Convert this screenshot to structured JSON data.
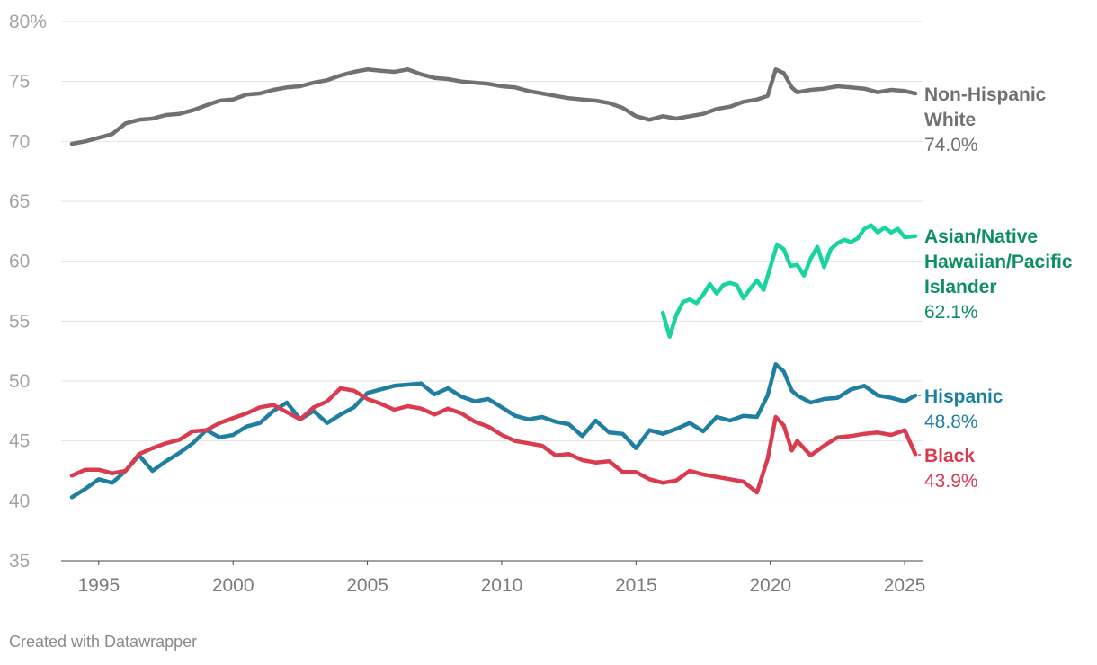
{
  "chart_data": {
    "type": "line",
    "xlim": [
      1993.6,
      2025.7
    ],
    "ylim": [
      35,
      80
    ],
    "y_ticks": [
      {
        "value": 80,
        "label": "80%"
      },
      {
        "value": 75,
        "label": "75"
      },
      {
        "value": 70,
        "label": "70"
      },
      {
        "value": 65,
        "label": "65"
      },
      {
        "value": 60,
        "label": "60"
      },
      {
        "value": 55,
        "label": "55"
      },
      {
        "value": 50,
        "label": "50"
      },
      {
        "value": 45,
        "label": "45"
      },
      {
        "value": 40,
        "label": "40"
      },
      {
        "value": 35,
        "label": "35"
      }
    ],
    "x_ticks": [
      {
        "value": 1995,
        "label": "1995"
      },
      {
        "value": 2000,
        "label": "2000"
      },
      {
        "value": 2005,
        "label": "2005"
      },
      {
        "value": 2010,
        "label": "2010"
      },
      {
        "value": 2015,
        "label": "2015"
      },
      {
        "value": 2020,
        "label": "2020"
      },
      {
        "value": 2025,
        "label": "2025"
      }
    ],
    "grid": true,
    "legend": "direct labels at right end of lines",
    "series": [
      {
        "name_lines": [
          "Non-Hispanic",
          "White"
        ],
        "value_label": "74.0%",
        "color": "#717171",
        "name_color": "#717171",
        "x": [
          1994.0,
          1994.5,
          1995.0,
          1995.5,
          1996.0,
          1996.5,
          1997.0,
          1997.5,
          1998.0,
          1998.5,
          1999.0,
          1999.5,
          2000.0,
          2000.5,
          2001.0,
          2001.5,
          2002.0,
          2002.5,
          2003.0,
          2003.5,
          2004.0,
          2004.5,
          2005.0,
          2005.5,
          2006.0,
          2006.5,
          2007.0,
          2007.5,
          2008.0,
          2008.5,
          2009.0,
          2009.5,
          2010.0,
          2010.5,
          2011.0,
          2011.5,
          2012.0,
          2012.5,
          2013.0,
          2013.5,
          2014.0,
          2014.5,
          2015.0,
          2015.5,
          2016.0,
          2016.5,
          2017.0,
          2017.5,
          2018.0,
          2018.5,
          2019.0,
          2019.5,
          2019.9,
          2020.2,
          2020.5,
          2020.8,
          2021.0,
          2021.5,
          2022.0,
          2022.5,
          2023.0,
          2023.5,
          2024.0,
          2024.5,
          2025.0,
          2025.4
        ],
        "y": [
          69.8,
          70.0,
          70.3,
          70.6,
          71.5,
          71.8,
          71.9,
          72.2,
          72.3,
          72.6,
          73.0,
          73.4,
          73.5,
          73.9,
          74.0,
          74.3,
          74.5,
          74.6,
          74.9,
          75.1,
          75.5,
          75.8,
          76.0,
          75.9,
          75.8,
          76.0,
          75.6,
          75.3,
          75.2,
          75.0,
          74.9,
          74.8,
          74.6,
          74.5,
          74.2,
          74.0,
          73.8,
          73.6,
          73.5,
          73.4,
          73.2,
          72.8,
          72.1,
          71.8,
          72.1,
          71.9,
          72.1,
          72.3,
          72.7,
          72.9,
          73.3,
          73.5,
          73.8,
          76.0,
          75.7,
          74.5,
          74.1,
          74.3,
          74.4,
          74.6,
          74.5,
          74.4,
          74.1,
          74.3,
          74.2,
          74.0
        ]
      },
      {
        "name_lines": [
          "Asian/Native",
          "Hawaiian/Pacific",
          "Islander"
        ],
        "value_label": "62.1%",
        "color": "#18d4a0",
        "name_color": "#0e8f5f",
        "x": [
          2016.0,
          2016.25,
          2016.5,
          2016.75,
          2017.0,
          2017.25,
          2017.5,
          2017.75,
          2018.0,
          2018.25,
          2018.5,
          2018.75,
          2019.0,
          2019.25,
          2019.5,
          2019.75,
          2020.0,
          2020.25,
          2020.5,
          2020.75,
          2021.0,
          2021.25,
          2021.5,
          2021.75,
          2022.0,
          2022.25,
          2022.5,
          2022.75,
          2023.0,
          2023.25,
          2023.5,
          2023.75,
          2024.0,
          2024.25,
          2024.5,
          2024.75,
          2025.0,
          2025.4
        ],
        "y": [
          55.7,
          53.7,
          55.5,
          56.6,
          56.8,
          56.5,
          57.2,
          58.1,
          57.3,
          58.0,
          58.2,
          58.0,
          56.9,
          57.7,
          58.4,
          57.6,
          59.5,
          61.4,
          61.0,
          59.6,
          59.7,
          58.8,
          60.2,
          61.2,
          59.5,
          61.0,
          61.5,
          61.8,
          61.6,
          61.9,
          62.7,
          63.0,
          62.4,
          62.8,
          62.4,
          62.7,
          62.0,
          62.1
        ]
      },
      {
        "name_lines": [
          "Hispanic"
        ],
        "value_label": "48.8%",
        "color": "#1f7fa1",
        "name_color": "#1f7fa1",
        "x": [
          1994.0,
          1994.5,
          1995.0,
          1995.5,
          1996.0,
          1996.5,
          1997.0,
          1997.5,
          1998.0,
          1998.5,
          1999.0,
          1999.5,
          2000.0,
          2000.5,
          2001.0,
          2001.5,
          2002.0,
          2002.5,
          2003.0,
          2003.5,
          2004.0,
          2004.5,
          2005.0,
          2005.5,
          2006.0,
          2006.5,
          2007.0,
          2007.5,
          2008.0,
          2008.5,
          2009.0,
          2009.5,
          2010.0,
          2010.5,
          2011.0,
          2011.5,
          2012.0,
          2012.5,
          2013.0,
          2013.5,
          2014.0,
          2014.5,
          2015.0,
          2015.5,
          2016.0,
          2016.5,
          2017.0,
          2017.5,
          2018.0,
          2018.5,
          2019.0,
          2019.5,
          2019.9,
          2020.2,
          2020.5,
          2020.8,
          2021.0,
          2021.5,
          2022.0,
          2022.5,
          2023.0,
          2023.5,
          2024.0,
          2024.5,
          2025.0,
          2025.4
        ],
        "y": [
          40.3,
          41.0,
          41.8,
          41.5,
          42.5,
          43.8,
          42.5,
          43.3,
          44.0,
          44.8,
          45.9,
          45.3,
          45.5,
          46.2,
          46.5,
          47.5,
          48.2,
          46.8,
          47.5,
          46.5,
          47.2,
          47.8,
          49.0,
          49.3,
          49.6,
          49.7,
          49.8,
          48.9,
          49.4,
          48.7,
          48.3,
          48.5,
          47.8,
          47.1,
          46.8,
          47.0,
          46.6,
          46.4,
          45.4,
          46.7,
          45.7,
          45.6,
          44.4,
          45.9,
          45.6,
          46.0,
          46.5,
          45.8,
          47.0,
          46.7,
          47.1,
          47.0,
          48.8,
          51.4,
          50.8,
          49.2,
          48.8,
          48.2,
          48.5,
          48.6,
          49.3,
          49.6,
          48.8,
          48.6,
          48.3,
          48.8
        ]
      },
      {
        "name_lines": [
          "Black"
        ],
        "value_label": "43.9%",
        "color": "#d93b4f",
        "name_color": "#d93b4f",
        "x": [
          1994.0,
          1994.5,
          1995.0,
          1995.5,
          1996.0,
          1996.5,
          1997.0,
          1997.5,
          1998.0,
          1998.5,
          1999.0,
          1999.5,
          2000.0,
          2000.5,
          2001.0,
          2001.5,
          2002.0,
          2002.5,
          2003.0,
          2003.5,
          2004.0,
          2004.5,
          2005.0,
          2005.5,
          2006.0,
          2006.5,
          2007.0,
          2007.5,
          2008.0,
          2008.5,
          2009.0,
          2009.5,
          2010.0,
          2010.5,
          2011.0,
          2011.5,
          2012.0,
          2012.5,
          2013.0,
          2013.5,
          2014.0,
          2014.5,
          2015.0,
          2015.5,
          2016.0,
          2016.5,
          2017.0,
          2017.5,
          2018.0,
          2018.5,
          2019.0,
          2019.5,
          2019.9,
          2020.2,
          2020.5,
          2020.8,
          2021.0,
          2021.5,
          2022.0,
          2022.5,
          2023.0,
          2023.5,
          2024.0,
          2024.5,
          2025.0,
          2025.4
        ],
        "y": [
          42.1,
          42.6,
          42.6,
          42.3,
          42.5,
          43.9,
          44.4,
          44.8,
          45.1,
          45.8,
          45.9,
          46.5,
          46.9,
          47.3,
          47.8,
          48.0,
          47.4,
          46.8,
          47.8,
          48.3,
          49.4,
          49.2,
          48.5,
          48.1,
          47.6,
          47.9,
          47.7,
          47.2,
          47.7,
          47.3,
          46.6,
          46.2,
          45.5,
          45.0,
          44.8,
          44.6,
          43.8,
          43.9,
          43.4,
          43.2,
          43.3,
          42.4,
          42.4,
          41.8,
          41.5,
          41.7,
          42.5,
          42.2,
          42.0,
          41.8,
          41.6,
          40.7,
          43.5,
          47.0,
          46.3,
          44.2,
          45.0,
          43.8,
          44.6,
          45.3,
          45.4,
          45.6,
          45.7,
          45.5,
          45.9,
          43.9
        ]
      }
    ]
  },
  "footer": {
    "credit": "Created with Datawrapper"
  }
}
